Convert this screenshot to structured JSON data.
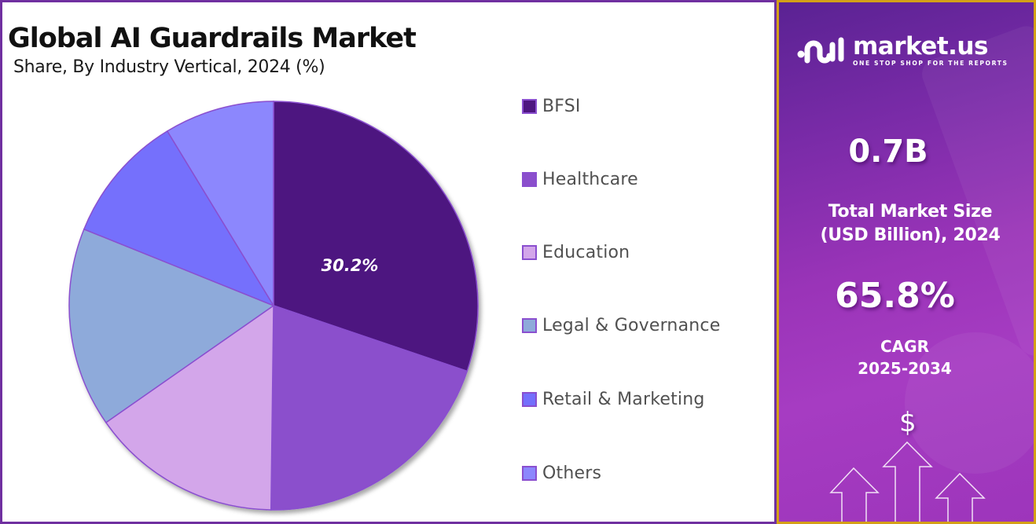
{
  "header": {
    "title": "Global AI Guardrails Market",
    "subtitle": "Share, By Industry Vertical, 2024 (%)"
  },
  "chart_data": {
    "type": "pie",
    "title": "Global AI Guardrails Market",
    "subtitle": "Share, By Industry Vertical, 2024 (%)",
    "categories": [
      "BFSI",
      "Healthcare",
      "Education",
      "Legal & Governance",
      "Retail & Marketing",
      "Others"
    ],
    "values": [
      30.2,
      20.0,
      15.1,
      15.8,
      10.2,
      8.7
    ],
    "colors": [
      "#4e1780",
      "#8b4fcc",
      "#d3a6ea",
      "#8eaada",
      "#7470fc",
      "#8c87fd"
    ],
    "data_labels": [
      {
        "category": "BFSI",
        "text": "30.2%"
      }
    ],
    "start_angle_deg": 0,
    "direction": "clockwise",
    "legend_position": "right",
    "unit": "%"
  },
  "legend": {
    "items": [
      {
        "label": "BFSI",
        "color": "#4e1780"
      },
      {
        "label": "Healthcare",
        "color": "#8b4fcc"
      },
      {
        "label": "Education",
        "color": "#d3a6ea"
      },
      {
        "label": "Legal & Governance",
        "color": "#8eaada"
      },
      {
        "label": "Retail & Marketing",
        "color": "#7470fc"
      },
      {
        "label": "Others",
        "color": "#8c87fd"
      }
    ]
  },
  "pie_label": "30.2%",
  "sidebar": {
    "brand": {
      "name": "market.us",
      "tagline": "ONE STOP SHOP FOR THE REPORTS"
    },
    "market_size": {
      "value": "0.7B",
      "label_line1": "Total Market Size",
      "label_line2": "(USD Billion), 2024"
    },
    "cagr": {
      "value": "65.8%",
      "label_line1": "CAGR",
      "label_line2": "2025-2034"
    },
    "currency_symbol": "$"
  },
  "colors": {
    "left_border": "#7030a0",
    "right_border": "#d4a017",
    "slice_stroke": "#8a4fcf"
  }
}
